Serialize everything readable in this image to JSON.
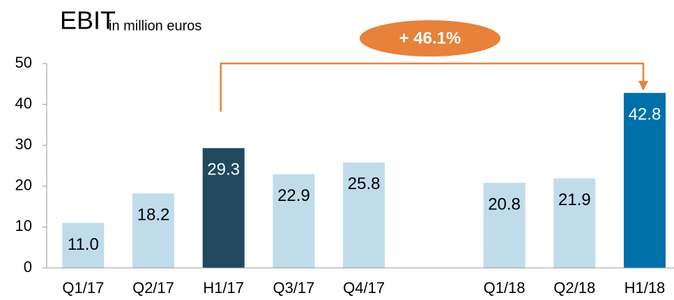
{
  "chart_data": {
    "type": "bar",
    "title": "EBIT",
    "subtitle": "in million euros",
    "categories": [
      "Q1/17",
      "Q2/17",
      "H1/17",
      "Q3/17",
      "Q4/17",
      null,
      "Q1/18",
      "Q2/18",
      "H1/18"
    ],
    "values": [
      11.0,
      18.2,
      29.3,
      22.9,
      25.8,
      null,
      20.8,
      21.9,
      42.8
    ],
    "value_labels": [
      "11.0",
      "18.2",
      "29.3",
      "22.9",
      "25.8",
      null,
      "20.8",
      "21.9",
      "42.8"
    ],
    "colors": [
      "#c0dcea",
      "#c0dcea",
      "#21485f",
      "#c0dcea",
      "#c0dcea",
      null,
      "#c0dcea",
      "#c0dcea",
      "#0070a8"
    ],
    "ylim": [
      0,
      50
    ],
    "yticks": [
      0,
      10,
      20,
      30,
      40,
      50
    ],
    "annotation": "+ 46.1%",
    "annotation_color": "#e8813a"
  }
}
